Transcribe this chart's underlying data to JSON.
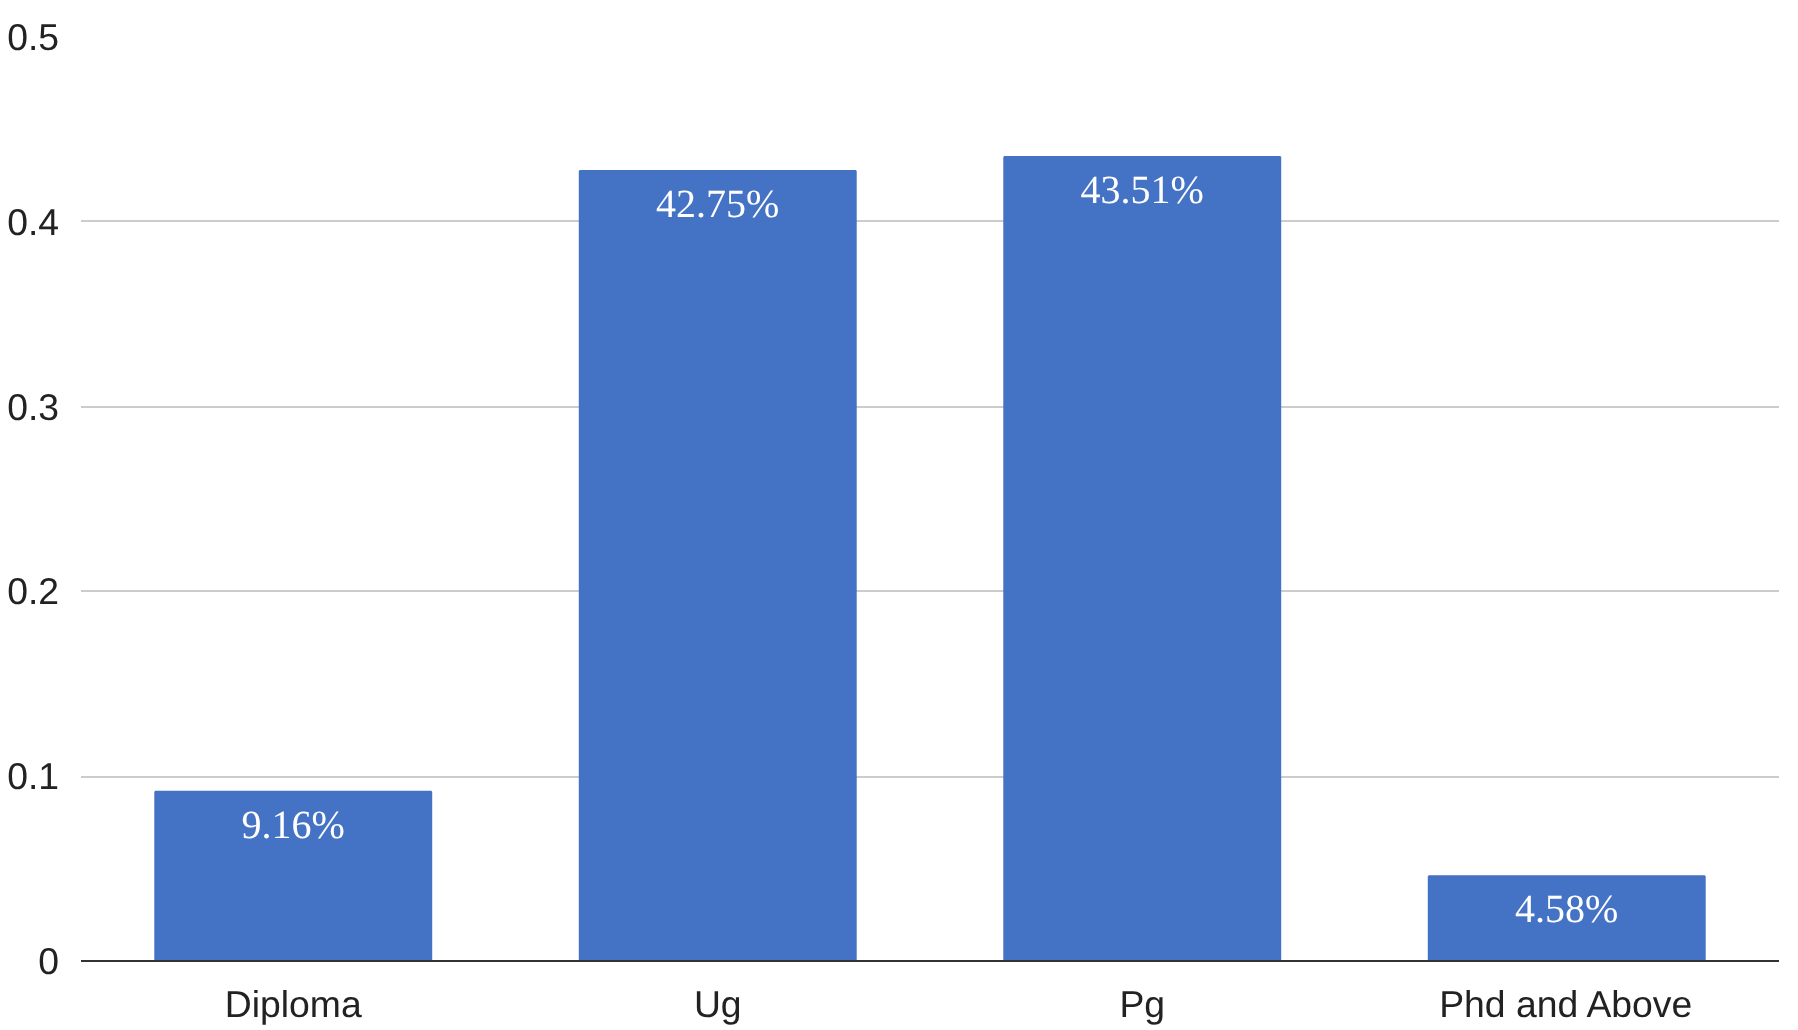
{
  "chart_data": {
    "type": "bar",
    "categories": [
      "Diploma",
      "Ug",
      "Pg",
      "Phd and Above"
    ],
    "values": [
      0.0916,
      0.4275,
      0.4351,
      0.0458
    ],
    "value_labels": [
      "9.16%",
      "42.75%",
      "43.51%",
      "4.58%"
    ],
    "color": "#4472c4",
    "ylim": [
      0,
      0.5
    ],
    "yticks": [
      0,
      0.1,
      0.2,
      0.3,
      0.4,
      0.5
    ],
    "grid": "y"
  }
}
